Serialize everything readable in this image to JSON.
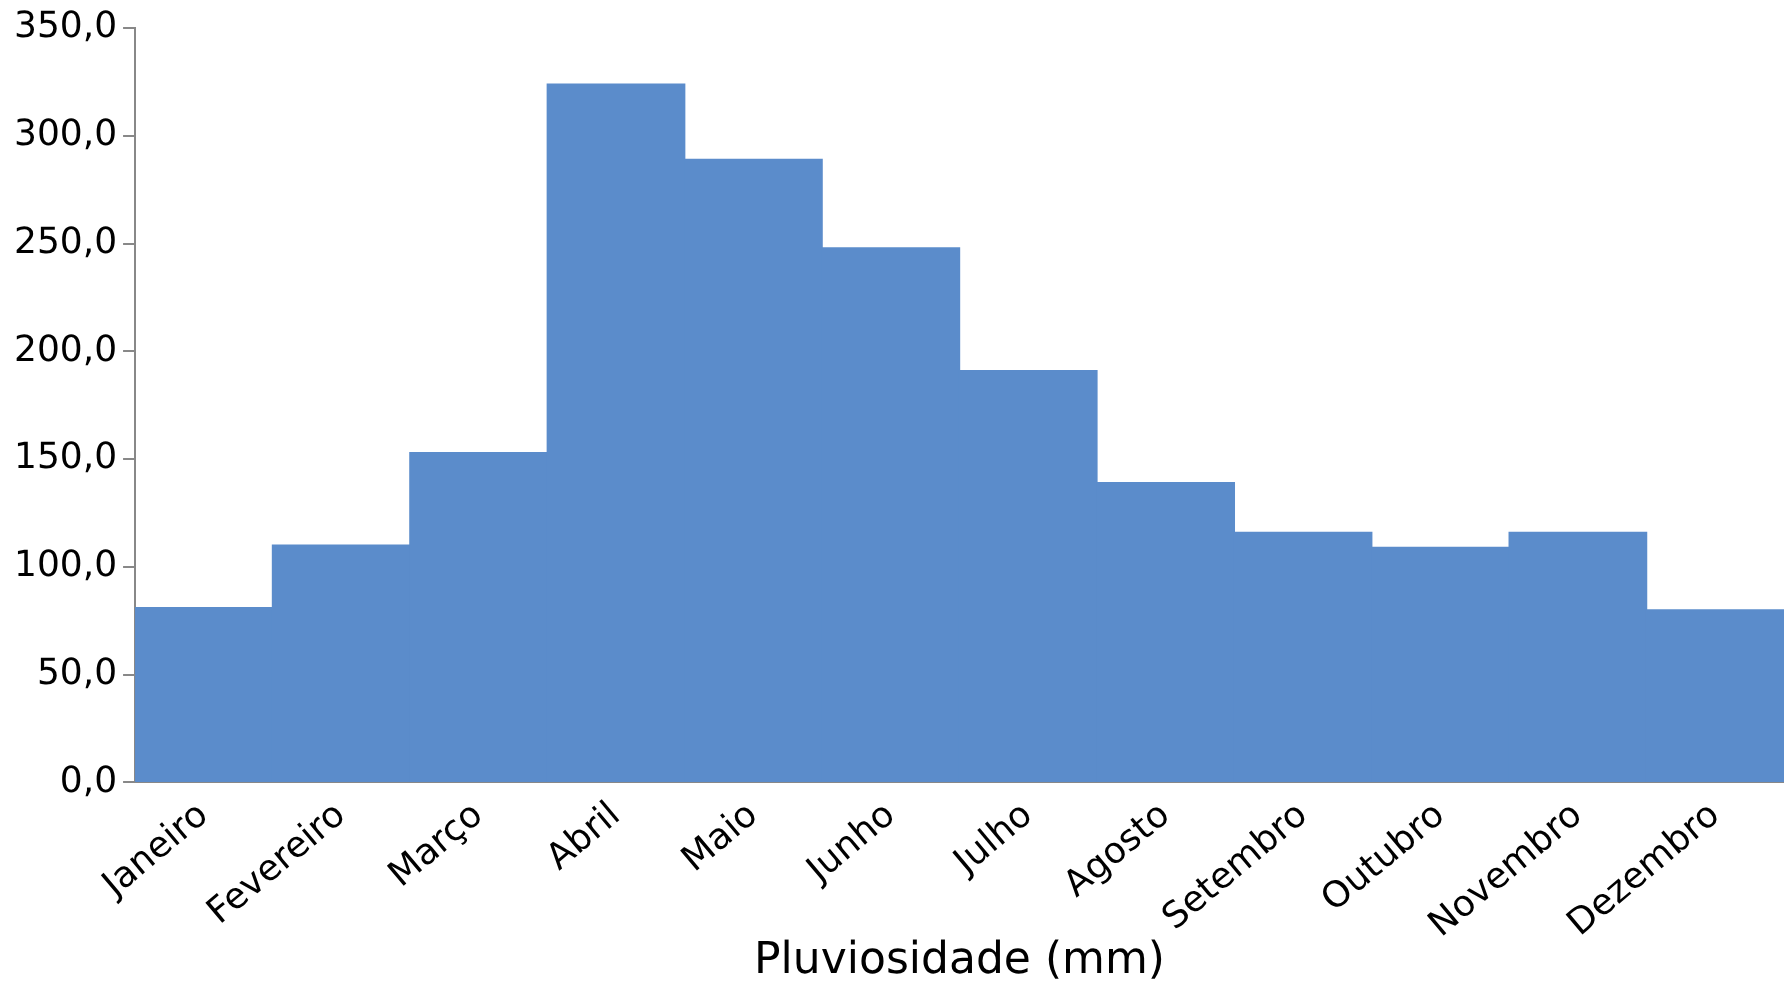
{
  "chart_data": {
    "type": "bar",
    "xlabel": "Pluviosidade (mm)",
    "categories": [
      "Janeiro",
      "Fevereiro",
      "Março",
      "Abril",
      "Maio",
      "Junho",
      "Julho",
      "Agosto",
      "Setembro",
      "Outubro",
      "Novembro",
      "Dezembro"
    ],
    "values": [
      81,
      110,
      153,
      324,
      289,
      248,
      191,
      139,
      116,
      109,
      116,
      80
    ],
    "color": "#5b8ccb",
    "ylim": [
      0,
      350
    ],
    "yticks": [
      {
        "value": 0,
        "label": "0,0"
      },
      {
        "value": 50,
        "label": "50,0"
      },
      {
        "value": 100,
        "label": "100,0"
      },
      {
        "value": 150,
        "label": "150,0"
      },
      {
        "value": 200,
        "label": "200,0"
      },
      {
        "value": 250,
        "label": "250,0"
      },
      {
        "value": 300,
        "label": "300,0"
      },
      {
        "value": 350,
        "label": "350,0"
      }
    ],
    "grid": false,
    "legend": false
  }
}
